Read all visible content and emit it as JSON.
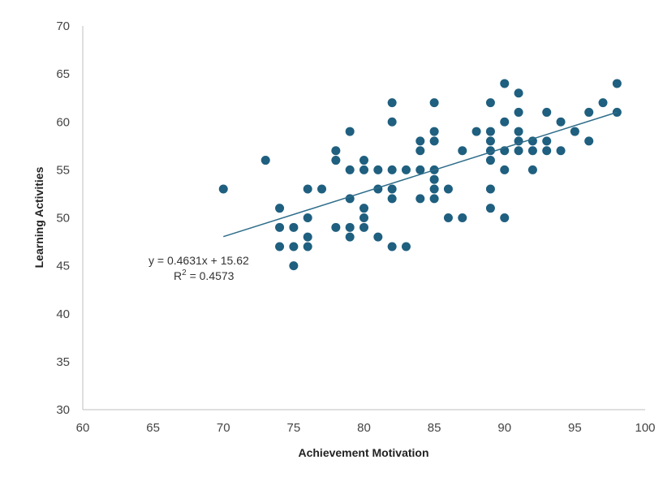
{
  "chart_data": {
    "type": "scatter",
    "title": "",
    "xlabel": "Achievement Motivation",
    "ylabel": "Learning Activities",
    "xlim": [
      60,
      100
    ],
    "ylim": [
      30,
      70
    ],
    "x_ticks": [
      60,
      65,
      70,
      75,
      80,
      85,
      90,
      95,
      100
    ],
    "y_ticks": [
      30,
      35,
      40,
      45,
      50,
      55,
      60,
      65,
      70
    ],
    "grid": false,
    "legend": "none",
    "marker_color": "#1f5f7f",
    "trendline": {
      "slope": 0.4631,
      "intercept": 15.62,
      "x_range": [
        70,
        98
      ],
      "color": "#2e6d8a",
      "equation_label": "y = 0.4631x + 15.62",
      "r2_label_prefix": "R",
      "r2_label_exp": "2",
      "r2_label_value": " = 0.4573"
    },
    "points": [
      [
        70,
        53
      ],
      [
        73,
        56
      ],
      [
        74,
        51
      ],
      [
        74,
        49
      ],
      [
        74,
        47
      ],
      [
        75,
        49
      ],
      [
        75,
        47
      ],
      [
        75,
        45
      ],
      [
        76,
        53
      ],
      [
        76,
        50
      ],
      [
        76,
        48
      ],
      [
        76,
        47
      ],
      [
        77,
        53
      ],
      [
        78,
        57
      ],
      [
        78,
        56
      ],
      [
        78,
        49
      ],
      [
        79,
        59
      ],
      [
        79,
        55
      ],
      [
        79,
        52
      ],
      [
        79,
        49
      ],
      [
        79,
        48
      ],
      [
        80,
        56
      ],
      [
        80,
        55
      ],
      [
        80,
        51
      ],
      [
        80,
        50
      ],
      [
        80,
        49
      ],
      [
        81,
        55
      ],
      [
        81,
        53
      ],
      [
        81,
        48
      ],
      [
        82,
        62
      ],
      [
        82,
        60
      ],
      [
        82,
        55
      ],
      [
        82,
        53
      ],
      [
        82,
        52
      ],
      [
        82,
        47
      ],
      [
        83,
        55
      ],
      [
        83,
        47
      ],
      [
        84,
        58
      ],
      [
        84,
        57
      ],
      [
        84,
        55
      ],
      [
        84,
        52
      ],
      [
        85,
        62
      ],
      [
        85,
        59
      ],
      [
        85,
        58
      ],
      [
        85,
        55
      ],
      [
        85,
        54
      ],
      [
        85,
        53
      ],
      [
        85,
        52
      ],
      [
        86,
        53
      ],
      [
        86,
        50
      ],
      [
        87,
        57
      ],
      [
        87,
        50
      ],
      [
        88,
        59
      ],
      [
        89,
        62
      ],
      [
        89,
        59
      ],
      [
        89,
        58
      ],
      [
        89,
        57
      ],
      [
        89,
        56
      ],
      [
        89,
        53
      ],
      [
        89,
        51
      ],
      [
        90,
        64
      ],
      [
        90,
        60
      ],
      [
        90,
        57
      ],
      [
        90,
        55
      ],
      [
        90,
        50
      ],
      [
        91,
        63
      ],
      [
        91,
        61
      ],
      [
        91,
        59
      ],
      [
        91,
        58
      ],
      [
        91,
        57
      ],
      [
        92,
        58
      ],
      [
        92,
        57
      ],
      [
        92,
        55
      ],
      [
        93,
        61
      ],
      [
        93,
        58
      ],
      [
        93,
        57
      ],
      [
        94,
        60
      ],
      [
        94,
        57
      ],
      [
        95,
        59
      ],
      [
        96,
        61
      ],
      [
        96,
        58
      ],
      [
        97,
        62
      ],
      [
        98,
        64
      ],
      [
        98,
        61
      ]
    ]
  }
}
